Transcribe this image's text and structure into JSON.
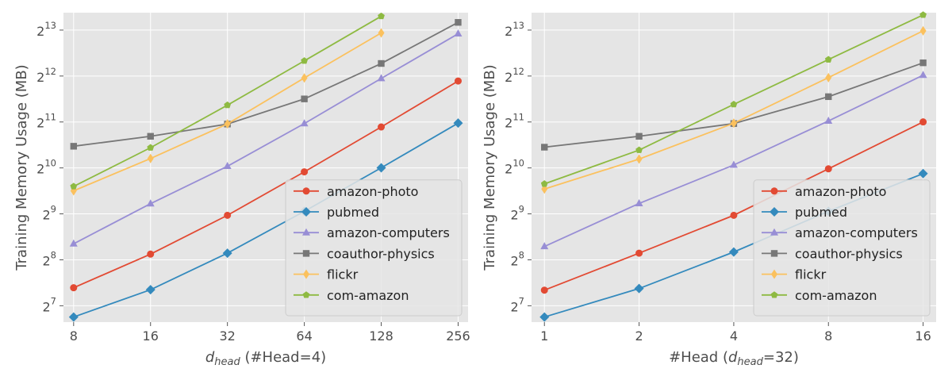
{
  "chart_data": [
    {
      "type": "line",
      "xlabel_parts": {
        "var": "d",
        "sub": "head",
        "rest": " (#Head=4)"
      },
      "ylabel": "Training Memory Usage (MB)",
      "x": [
        8,
        16,
        32,
        64,
        128,
        256
      ],
      "x_scale": "log2",
      "y_scale": "log2",
      "xlim": [
        7.3,
        280
      ],
      "ylim": [
        100,
        10650
      ],
      "yticks": [
        {
          "value": 128,
          "base": "2",
          "exp": "7"
        },
        {
          "value": 256,
          "base": "2",
          "exp": "8"
        },
        {
          "value": 512,
          "base": "2",
          "exp": "9"
        },
        {
          "value": 1024,
          "base": "2",
          "exp": "10"
        },
        {
          "value": 2048,
          "base": "2",
          "exp": "11"
        },
        {
          "value": 4096,
          "base": "2",
          "exp": "12"
        },
        {
          "value": 8192,
          "base": "2",
          "exp": "13"
        }
      ],
      "xticks": [
        "8",
        "16",
        "32",
        "64",
        "128",
        "256"
      ],
      "grid": true,
      "legend_position": "lower-right",
      "series": [
        {
          "name": "amazon-photo",
          "color": "#e24a33",
          "marker": "circle",
          "values": [
            168,
            279,
            501,
            965,
            1900,
            3800
          ]
        },
        {
          "name": "pubmed",
          "color": "#348abd",
          "marker": "diamond",
          "values": [
            108,
            163,
            283,
            532,
            1026,
            2013
          ]
        },
        {
          "name": "amazon-computers",
          "color": "#988ed5",
          "marker": "triangle",
          "values": [
            326,
            597,
            1050,
            2000,
            3950,
            7750
          ]
        },
        {
          "name": "coauthor-physics",
          "color": "#777777",
          "marker": "square",
          "values": [
            1420,
            1650,
            1985,
            2900,
            4950,
            9200
          ]
        },
        {
          "name": "flickr",
          "color": "#fbc15e",
          "marker": "thin_diamond",
          "values": [
            725,
            1180,
            1990,
            3980,
            7850,
            null
          ]
        },
        {
          "name": "com-amazon",
          "color": "#8eba42",
          "marker": "pentagon",
          "values": [
            775,
            1390,
            2640,
            5150,
            10100,
            null
          ]
        }
      ]
    },
    {
      "type": "line",
      "xlabel_parts": {
        "var": "d",
        "sub": "head",
        "prefix": "#Head (",
        "rest": "=32)"
      },
      "ylabel": "Training Memory Usage (MB)",
      "x": [
        1,
        2,
        4,
        8,
        16
      ],
      "x_scale": "log2",
      "y_scale": "log2",
      "xlim": [
        0.91,
        17.6
      ],
      "ylim": [
        100,
        10650
      ],
      "yticks": [
        {
          "value": 128,
          "base": "2",
          "exp": "7"
        },
        {
          "value": 256,
          "base": "2",
          "exp": "8"
        },
        {
          "value": 512,
          "base": "2",
          "exp": "9"
        },
        {
          "value": 1024,
          "base": "2",
          "exp": "10"
        },
        {
          "value": 2048,
          "base": "2",
          "exp": "11"
        },
        {
          "value": 4096,
          "base": "2",
          "exp": "12"
        },
        {
          "value": 8192,
          "base": "2",
          "exp": "13"
        }
      ],
      "xticks": [
        "1",
        "2",
        "4",
        "8",
        "16"
      ],
      "grid": true,
      "legend_position": "lower-right",
      "series": [
        {
          "name": "amazon-photo",
          "color": "#e24a33",
          "marker": "circle",
          "values": [
            162,
            283,
            501,
            1010,
            2050
          ]
        },
        {
          "name": "pubmed",
          "color": "#348abd",
          "marker": "diamond",
          "values": [
            108,
            166,
            288,
            532,
            940
          ]
        },
        {
          "name": "amazon-computers",
          "color": "#988ed5",
          "marker": "triangle",
          "values": [
            313,
            599,
            1070,
            2080,
            4150
          ]
        },
        {
          "name": "coauthor-physics",
          "color": "#777777",
          "marker": "square",
          "values": [
            1400,
            1650,
            2000,
            3000,
            5000
          ]
        },
        {
          "name": "flickr",
          "color": "#fbc15e",
          "marker": "thin_diamond",
          "values": [
            745,
            1170,
            2010,
            4000,
            8100
          ]
        },
        {
          "name": "com-amazon",
          "color": "#8eba42",
          "marker": "pentagon",
          "values": [
            805,
            1340,
            2670,
            5250,
            10300
          ]
        }
      ]
    }
  ]
}
